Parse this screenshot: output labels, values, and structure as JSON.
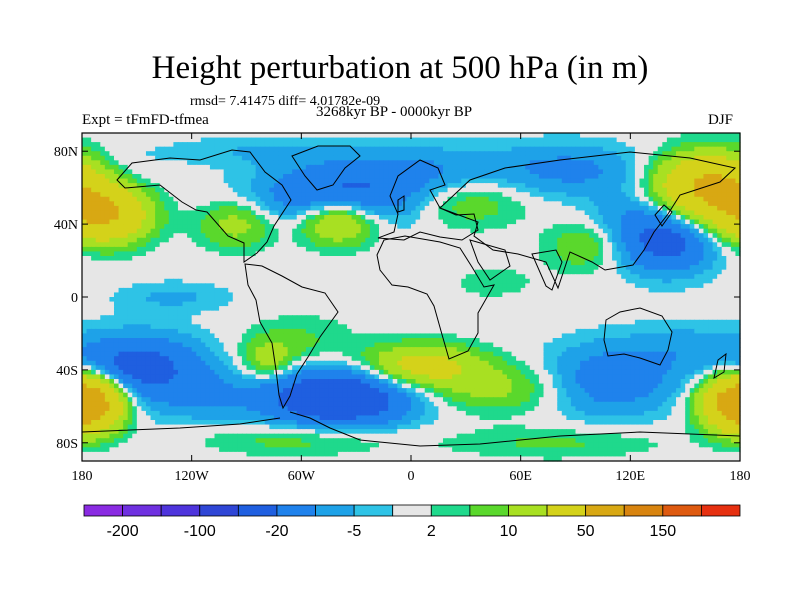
{
  "header": {
    "title": "Height perturbation at 500 hPa (in m)",
    "stats": "rmsd= 7.41475 diff= 4.01782e-09",
    "experiment": "Expt = tFmFD-tfmea",
    "period": "3268kyr BP - 0000kyr BP",
    "season": "DJF"
  },
  "chart_data": {
    "type": "heatmap",
    "title": "Height perturbation at 500 hPa (in m)",
    "projection": "cylindrical equidistant",
    "xlim": [
      -180,
      180
    ],
    "ylim": [
      -90,
      90
    ],
    "x_ticks": [
      {
        "value": -180,
        "label": "180"
      },
      {
        "value": -120,
        "label": "120W"
      },
      {
        "value": -60,
        "label": "60W"
      },
      {
        "value": 0,
        "label": "0"
      },
      {
        "value": 60,
        "label": "60E"
      },
      {
        "value": 120,
        "label": "120E"
      },
      {
        "value": 180,
        "label": "180"
      }
    ],
    "y_ticks": [
      {
        "value": 80,
        "label": "80N"
      },
      {
        "value": 40,
        "label": "40N"
      },
      {
        "value": 0,
        "label": "0"
      },
      {
        "value": -40,
        "label": "40S"
      },
      {
        "value": -80,
        "label": "80S"
      }
    ],
    "colorbar": {
      "colors": [
        "#8a2be2",
        "#6f30e0",
        "#4e34dc",
        "#2f46d6",
        "#1f5fe0",
        "#1f82ec",
        "#1ea2e8",
        "#2ec3e6",
        "#e6e6e6",
        "#1fd98c",
        "#5ad82c",
        "#a8e022",
        "#d4d21a",
        "#d8a813",
        "#d8840f",
        "#de5a10",
        "#e63010"
      ],
      "labels": [
        {
          "index": 1,
          "label": "-200"
        },
        {
          "index": 3,
          "label": "-100"
        },
        {
          "index": 5,
          "label": "-20"
        },
        {
          "index": 7,
          "label": "-5"
        },
        {
          "index": 9,
          "label": "2"
        },
        {
          "index": 11,
          "label": "10"
        },
        {
          "index": 13,
          "label": "50"
        },
        {
          "index": 15,
          "label": "150"
        }
      ]
    },
    "anomaly_centers": [
      {
        "lon": -40,
        "lat": 55,
        "value": -24,
        "sx": 30,
        "sy": 12
      },
      {
        "lon": 10,
        "lat": 68,
        "value": -10,
        "sx": 28,
        "sy": 10
      },
      {
        "lon": 85,
        "lat": 70,
        "value": -12,
        "sx": 30,
        "sy": 10
      },
      {
        "lon": 140,
        "lat": 30,
        "value": -24,
        "sx": 18,
        "sy": 12
      },
      {
        "lon": 125,
        "lat": 45,
        "value": -8,
        "sx": 20,
        "sy": 12
      },
      {
        "lon": -168,
        "lat": 68,
        "value": -6,
        "sx": 18,
        "sy": 10
      },
      {
        "lon": -80,
        "lat": 80,
        "value": -5,
        "sx": 40,
        "sy": 6
      },
      {
        "lon": -40,
        "lat": 42,
        "value": 28,
        "sx": 15,
        "sy": 9
      },
      {
        "lon": -95,
        "lat": 40,
        "value": 14,
        "sx": 14,
        "sy": 9
      },
      {
        "lon": -168,
        "lat": 45,
        "value": 50,
        "sx": 16,
        "sy": 10
      },
      {
        "lon": 165,
        "lat": 60,
        "value": 60,
        "sx": 20,
        "sy": 12
      },
      {
        "lon": 30,
        "lat": 53,
        "value": 10,
        "sx": 22,
        "sy": 10
      },
      {
        "lon": 95,
        "lat": 28,
        "value": 10,
        "sx": 14,
        "sy": 9
      },
      {
        "lon": -130,
        "lat": 0,
        "value": -6,
        "sx": 22,
        "sy": 6
      },
      {
        "lon": -150,
        "lat": -38,
        "value": -26,
        "sx": 25,
        "sy": 12
      },
      {
        "lon": -40,
        "lat": -55,
        "value": -38,
        "sx": 28,
        "sy": 11
      },
      {
        "lon": -115,
        "lat": -55,
        "value": -8,
        "sx": 22,
        "sy": 10
      },
      {
        "lon": 110,
        "lat": -45,
        "value": -16,
        "sx": 25,
        "sy": 14
      },
      {
        "lon": 150,
        "lat": -28,
        "value": -6,
        "sx": 20,
        "sy": 10
      },
      {
        "lon": -175,
        "lat": -58,
        "value": 60,
        "sx": 12,
        "sy": 10
      },
      {
        "lon": 175,
        "lat": -58,
        "value": 40,
        "sx": 12,
        "sy": 10
      },
      {
        "lon": -78,
        "lat": -35,
        "value": 14,
        "sx": 10,
        "sy": 8
      },
      {
        "lon": 5,
        "lat": -38,
        "value": 28,
        "sx": 22,
        "sy": 8
      },
      {
        "lon": 45,
        "lat": -50,
        "value": 12,
        "sx": 25,
        "sy": 9
      },
      {
        "lon": -60,
        "lat": -78,
        "value": 8,
        "sx": 35,
        "sy": 6
      },
      {
        "lon": 80,
        "lat": -80,
        "value": 6,
        "sx": 40,
        "sy": 6
      },
      {
        "lon": -60,
        "lat": -25,
        "value": 6,
        "sx": 20,
        "sy": 10
      },
      {
        "lon": 45,
        "lat": 8,
        "value": 3,
        "sx": 20,
        "sy": 8
      }
    ]
  }
}
